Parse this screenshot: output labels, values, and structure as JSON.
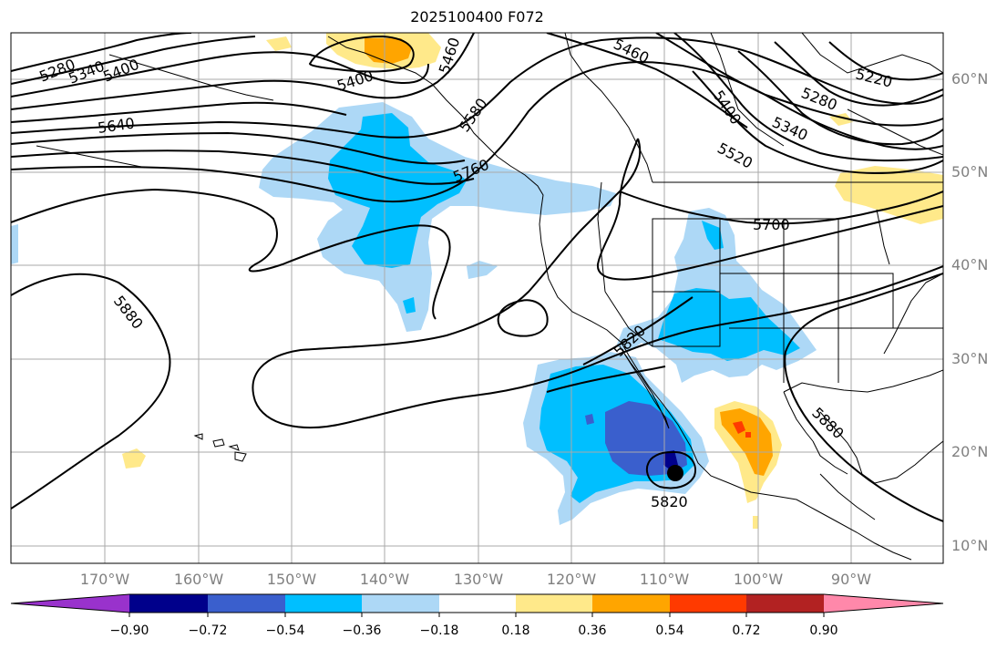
{
  "title": "2025100400 F072",
  "colors": {
    "land_outline": "#000000",
    "grid": "#aaaaaa",
    "contour": "#000000",
    "tick_label": "#808080"
  },
  "lat_labels": [
    "60°N",
    "50°N",
    "40°N",
    "30°N",
    "20°N",
    "10°N"
  ],
  "lon_labels": [
    "170°W",
    "160°W",
    "150°W",
    "140°W",
    "130°W",
    "120°W",
    "110°W",
    "100°W",
    "90°W"
  ],
  "contour_labels": [
    "5280",
    "5340",
    "5400",
    "5640",
    "5400",
    "5460",
    "5580",
    "5760",
    "5460",
    "5220",
    "5280",
    "5400",
    "5340",
    "5520",
    "5700",
    "5880",
    "5820",
    "5880",
    "5820"
  ],
  "colorbar": {
    "colors": [
      "#9932cc",
      "#00008b",
      "#3a5fcd",
      "#00bfff",
      "#add8f6",
      "#ffffff",
      "#ffe98a",
      "#ffa500",
      "#ff3a00",
      "#b22222",
      "#ff88aa"
    ],
    "tick_labels": [
      "−0.90",
      "−0.72",
      "−0.54",
      "−0.36",
      "−0.18",
      "0.18",
      "0.36",
      "0.54",
      "0.72",
      "0.90"
    ]
  },
  "storm_marker": "filled-circle"
}
